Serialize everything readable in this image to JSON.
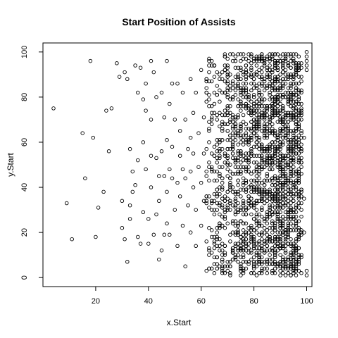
{
  "chart_data": {
    "type": "scatter",
    "title": "Start Position of Assists",
    "xlabel": "x.Start",
    "ylabel": "y.Start",
    "xlim": [
      0,
      102
    ],
    "ylim": [
      -4,
      104
    ],
    "xticks": [
      20,
      40,
      60,
      80,
      100
    ],
    "yticks": [
      0,
      20,
      40,
      60,
      80,
      100
    ],
    "marker": "open-circle",
    "grid": false,
    "legend": "none",
    "sparse_points": [
      [
        4,
        75
      ],
      [
        9,
        33
      ],
      [
        11,
        17
      ],
      [
        15,
        64
      ],
      [
        16,
        44
      ],
      [
        18,
        96
      ],
      [
        19,
        62
      ],
      [
        20,
        18
      ],
      [
        21,
        31
      ],
      [
        23,
        38
      ],
      [
        24,
        74
      ],
      [
        25,
        56
      ],
      [
        26,
        75
      ],
      [
        28,
        95
      ],
      [
        29,
        89
      ],
      [
        30,
        22
      ],
      [
        30,
        34
      ],
      [
        31,
        17
      ],
      [
        31,
        91
      ],
      [
        32,
        7
      ],
      [
        32,
        88
      ],
      [
        33,
        57
      ],
      [
        33,
        32
      ],
      [
        33,
        26
      ],
      [
        34,
        47
      ],
      [
        34,
        38
      ],
      [
        35,
        94
      ],
      [
        35,
        41
      ],
      [
        36,
        82
      ],
      [
        36,
        18
      ],
      [
        36,
        52
      ],
      [
        37,
        93
      ],
      [
        37,
        15
      ],
      [
        38,
        79
      ],
      [
        38,
        60
      ],
      [
        38,
        29
      ],
      [
        39,
        86
      ],
      [
        39,
        74
      ],
      [
        39,
        48
      ],
      [
        40,
        26
      ],
      [
        40,
        15
      ],
      [
        41,
        96
      ],
      [
        41,
        70
      ],
      [
        41,
        54
      ],
      [
        41,
        40
      ],
      [
        42,
        91
      ],
      [
        42,
        19
      ],
      [
        43,
        80
      ],
      [
        43,
        28
      ],
      [
        43,
        53
      ],
      [
        44,
        8
      ],
      [
        44,
        45
      ],
      [
        44,
        34
      ],
      [
        45,
        56
      ],
      [
        45,
        12
      ],
      [
        45,
        82
      ],
      [
        46,
        45
      ],
      [
        46,
        19
      ],
      [
        46,
        71
      ],
      [
        47,
        96
      ],
      [
        47,
        61
      ],
      [
        47,
        38
      ],
      [
        47,
        24
      ],
      [
        48,
        48
      ],
      [
        48,
        77
      ],
      [
        48,
        19
      ],
      [
        49,
        86
      ],
      [
        49,
        44
      ],
      [
        49,
        58
      ],
      [
        50,
        30
      ],
      [
        50,
        70
      ],
      [
        51,
        86
      ],
      [
        51,
        42
      ],
      [
        51,
        14
      ],
      [
        52,
        65
      ],
      [
        52,
        54
      ],
      [
        52,
        36
      ],
      [
        53,
        82
      ],
      [
        53,
        48
      ],
      [
        53,
        23
      ],
      [
        54,
        5
      ],
      [
        54,
        70
      ],
      [
        54,
        44
      ],
      [
        55,
        57
      ],
      [
        55,
        32
      ],
      [
        56,
        88
      ],
      [
        56,
        62
      ],
      [
        56,
        47
      ],
      [
        56,
        20
      ],
      [
        57,
        73
      ],
      [
        57,
        55
      ],
      [
        57,
        40
      ],
      [
        58,
        82
      ],
      [
        58,
        30
      ],
      [
        58,
        14
      ],
      [
        59,
        64
      ],
      [
        59,
        49
      ],
      [
        60,
        92
      ],
      [
        60,
        42
      ],
      [
        60,
        23
      ],
      [
        61,
        71
      ],
      [
        61,
        55
      ],
      [
        61,
        34
      ],
      [
        62,
        3
      ],
      [
        62,
        88
      ],
      [
        62,
        47
      ],
      [
        62,
        16
      ]
    ],
    "dense_region_note": "x 60-98, y 1-100, density increasing toward x 85-98"
  }
}
